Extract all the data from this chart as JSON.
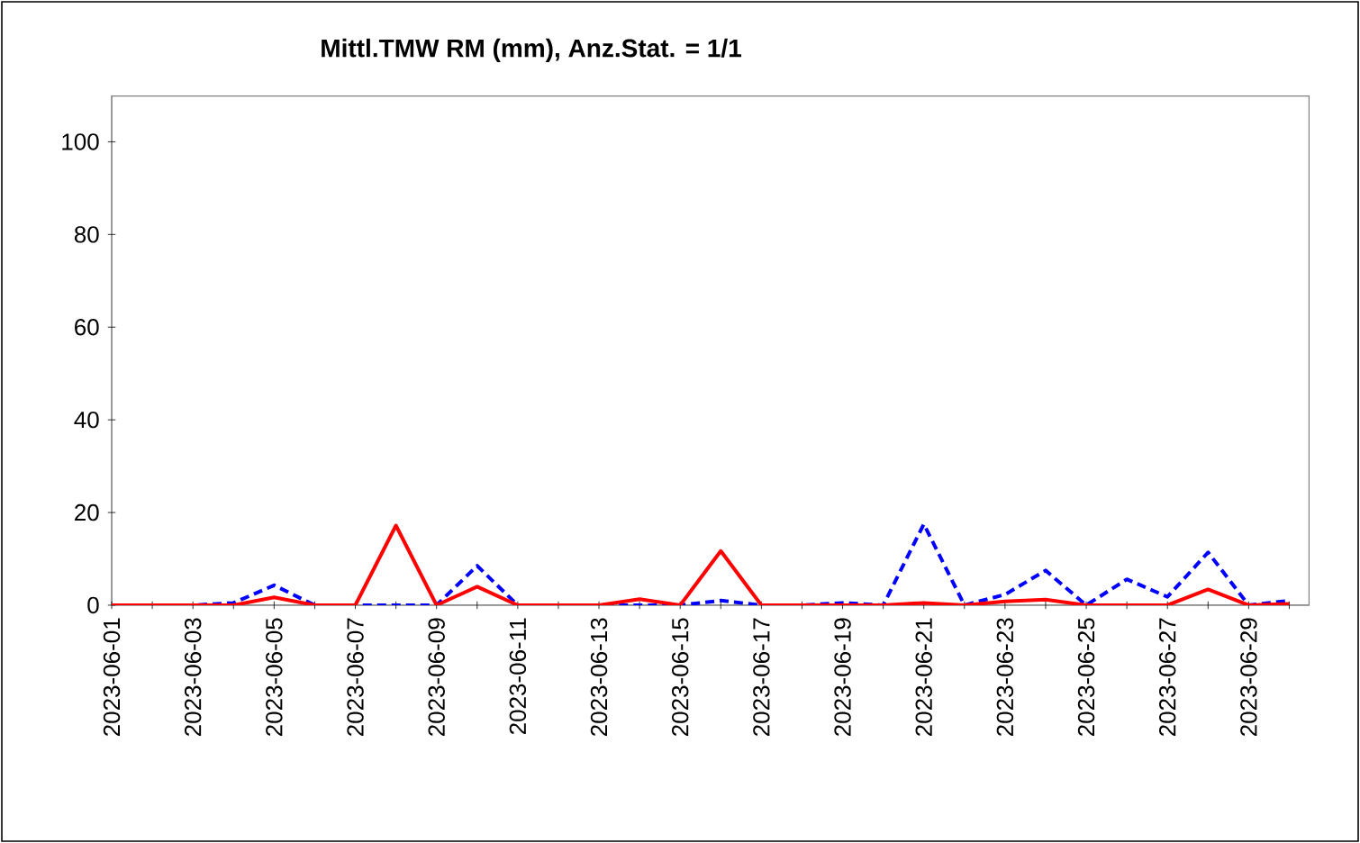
{
  "chart_data": {
    "type": "line",
    "title": "Mittl.TMW RM (mm), Anz.Stat. = 1/1",
    "categories": [
      "2023-06-01",
      null,
      "2023-06-03",
      null,
      "2023-06-05",
      null,
      "2023-06-07",
      null,
      "2023-06-09",
      null,
      "2023-06-11",
      null,
      "2023-06-13",
      null,
      "2023-06-15",
      null,
      "2023-06-17",
      null,
      "2023-06-19",
      null,
      "2023-06-21",
      null,
      "2023-06-23",
      null,
      "2023-06-25",
      null,
      "2023-06-27",
      null,
      "2023-06-29",
      null
    ],
    "series": [
      {
        "color": "#0000ff",
        "line_style": "dashed",
        "values": [
          0,
          0,
          0,
          0.5,
          4.3,
          0,
          0,
          0,
          0,
          8.5,
          0,
          0,
          0,
          0,
          0,
          1,
          0,
          0,
          0.5,
          0,
          17.5,
          0,
          2.3,
          7.5,
          0,
          5.6,
          1.8,
          11.4,
          0,
          1
        ]
      },
      {
        "color": "#ff0000",
        "line_style": "solid",
        "values": [
          0,
          0,
          0,
          0,
          1.7,
          0,
          0,
          17.2,
          0,
          4,
          0,
          0,
          0,
          1.3,
          0,
          11.7,
          0,
          0,
          0,
          0,
          0.5,
          0,
          0.8,
          1.2,
          0,
          0,
          0,
          3.4,
          0,
          0.3
        ]
      }
    ],
    "ylim": [
      0,
      110
    ],
    "yticks": [
      0,
      20,
      40,
      60,
      80,
      100
    ],
    "grid": false,
    "marker": "none"
  }
}
